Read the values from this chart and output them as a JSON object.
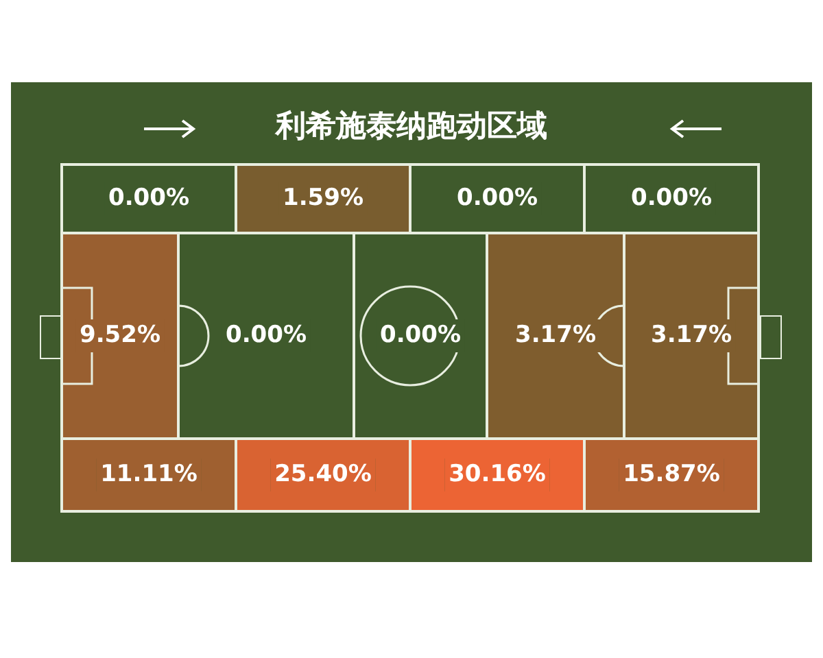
{
  "chart_data": {
    "type": "other",
    "title": "利希施泰纳跑动区域",
    "data_labels": true,
    "values": [
      0,
      1.59,
      0,
      0,
      9.52,
      0,
      0,
      3.17,
      3.17,
      11.11,
      25.4,
      30.16,
      15.87
    ],
    "value_labels": [
      "0.00%",
      "1.59%",
      "0.00%",
      "0.00%",
      "9.52%",
      "0.00%",
      "0.00%",
      "3.17%",
      "3.17%",
      "11.11%",
      "25.40%",
      "30.16%",
      "15.87%"
    ]
  }
}
